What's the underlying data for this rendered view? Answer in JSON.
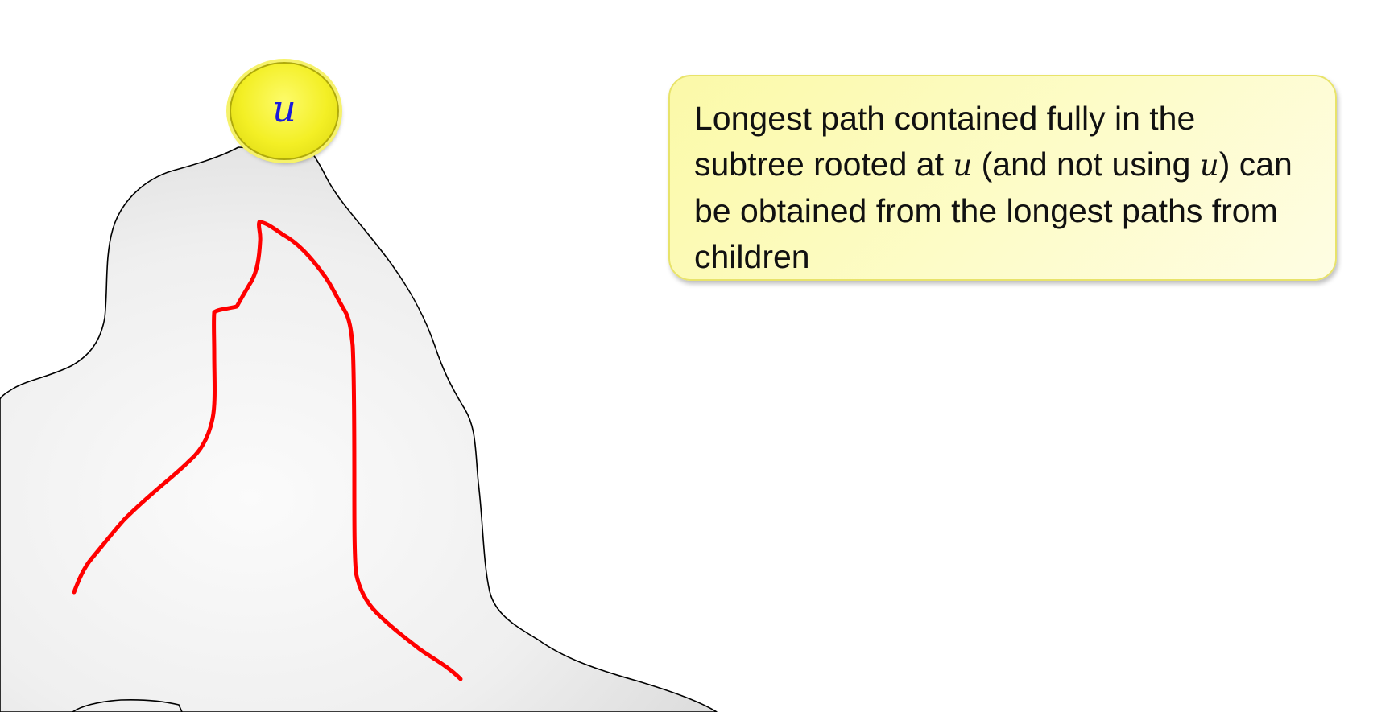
{
  "node": {
    "label": "u"
  },
  "callout": {
    "parts": [
      "Longest path contained fully in the subtree rooted at ",
      "u",
      " (and not using ",
      "u",
      ") can be obtained from the longest paths from children"
    ]
  },
  "colors": {
    "node_fill": "#f3ef25",
    "node_label": "#1a1adb",
    "callout_fill": "#fbf9a8",
    "path_stroke": "#ff0000",
    "subtree_fill": "#eeeeee",
    "subtree_outline": "#000000"
  }
}
